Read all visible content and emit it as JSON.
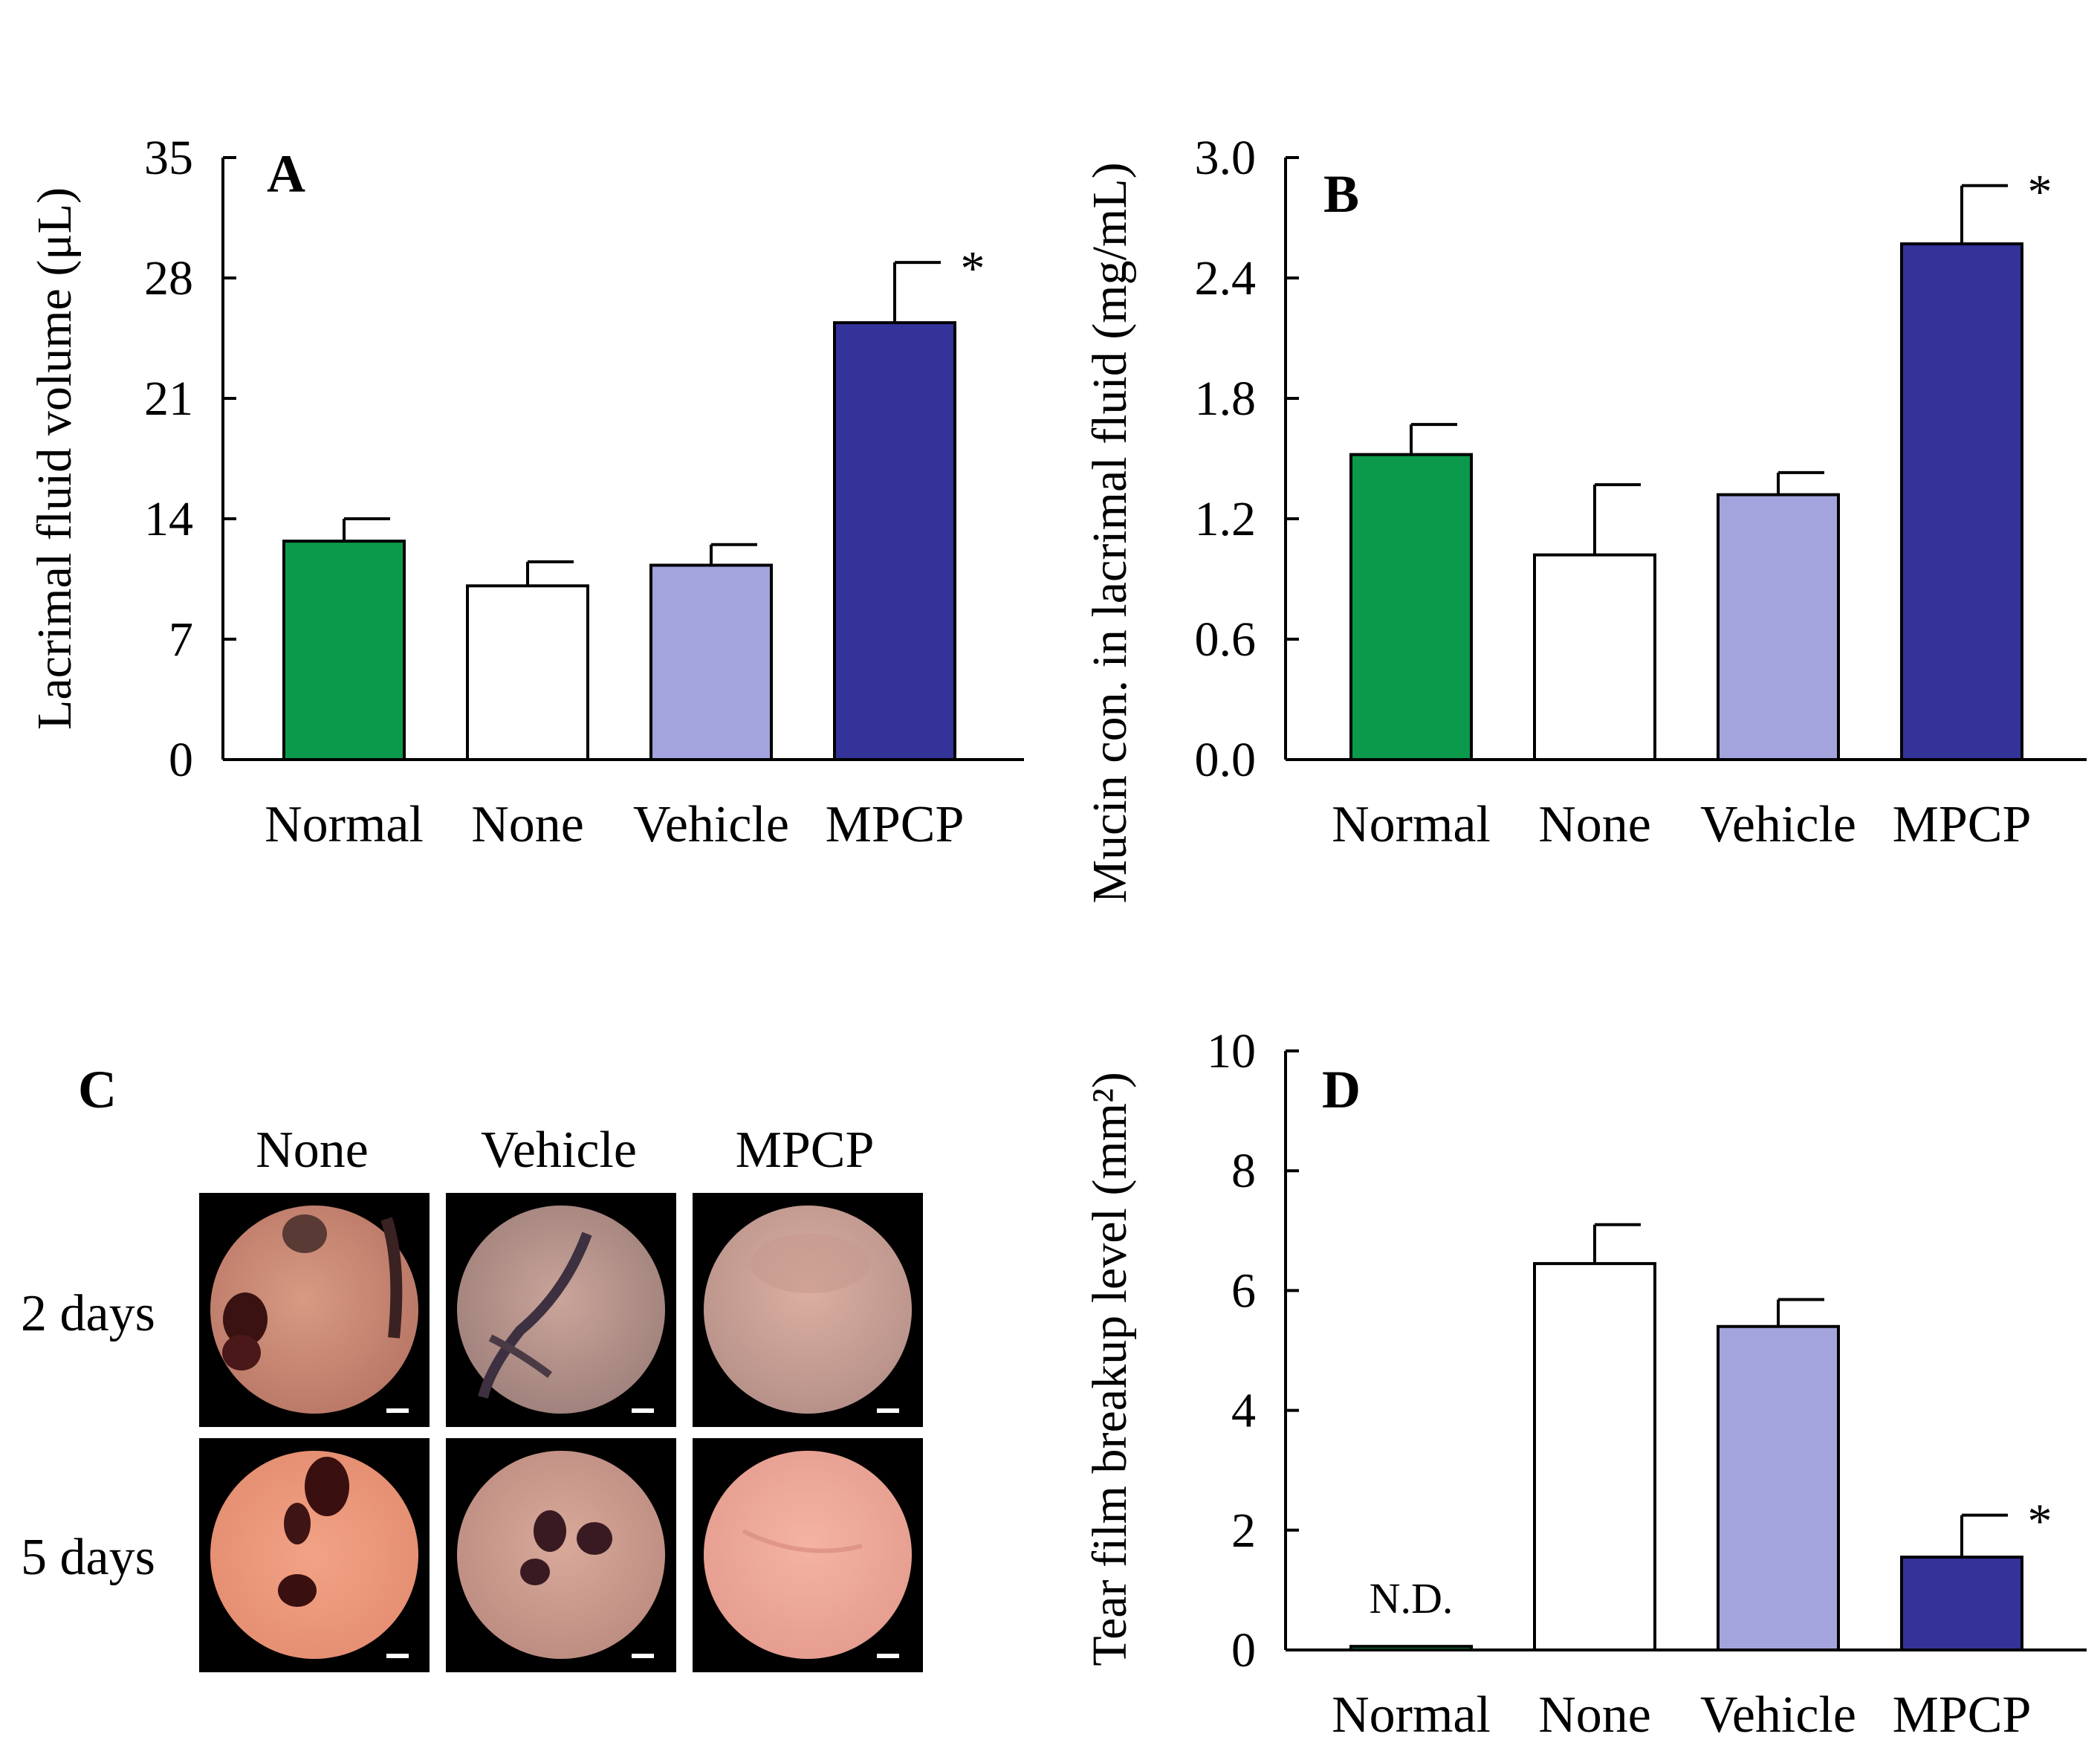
{
  "chart_data": [
    {
      "type": "bar",
      "panel_label": "A",
      "categories": [
        "Normal",
        "None",
        "Vehicle",
        "MPCP"
      ],
      "values": [
        12.7,
        10.1,
        11.3,
        25.4
      ],
      "errors": [
        1.3,
        1.4,
        1.2,
        3.5
      ],
      "significance": [
        "",
        "",
        "",
        "*"
      ],
      "ylabel": "Lacrimal  fluid volume (μL)",
      "ylim": [
        0,
        35
      ],
      "yticks": [
        "0",
        "7",
        "14",
        "21",
        "28",
        "35"
      ],
      "colors": [
        "#0b9a4b",
        "#ffffff",
        "#a3a3dd",
        "#34339a"
      ]
    },
    {
      "type": "bar",
      "panel_label": "B",
      "categories": [
        "Normal",
        "None",
        "Vehicle",
        "MPCP"
      ],
      "values": [
        1.52,
        1.02,
        1.32,
        2.57
      ],
      "errors": [
        0.15,
        0.35,
        0.11,
        0.29
      ],
      "significance": [
        "",
        "",
        "",
        "*"
      ],
      "ylabel": "Mucin con. in lacrimal  fluid (mg/mL)",
      "ylim": [
        0,
        3.0
      ],
      "yticks": [
        "0.0",
        "0.6",
        "1.2",
        "1.8",
        "2.4",
        "3.0"
      ],
      "colors": [
        "#0b9a4b",
        "#ffffff",
        "#a3a3dd",
        "#34339a"
      ]
    },
    {
      "type": "bar",
      "panel_label": "D",
      "categories": [
        "Normal",
        "None",
        "Vehicle",
        "MPCP"
      ],
      "values": [
        0.06,
        6.45,
        5.4,
        1.55
      ],
      "errors": [
        0,
        0.65,
        0.45,
        0.7
      ],
      "significance": [
        "",
        "",
        "",
        "*"
      ],
      "annotations": [
        "N.D.",
        "",
        "",
        ""
      ],
      "ylabel": "Tear film breakup  level (mm²)",
      "ylim": [
        0,
        10
      ],
      "yticks": [
        "0",
        "2",
        "4",
        "6",
        "8",
        "10"
      ],
      "colors": [
        "#0b9a4b",
        "#ffffff",
        "#a3a3dd",
        "#34339a"
      ]
    }
  ],
  "panel_c": {
    "label": "C",
    "columns": [
      "None",
      "Vehicle",
      "MPCP"
    ],
    "rows": [
      "2 days",
      "5 days"
    ]
  }
}
